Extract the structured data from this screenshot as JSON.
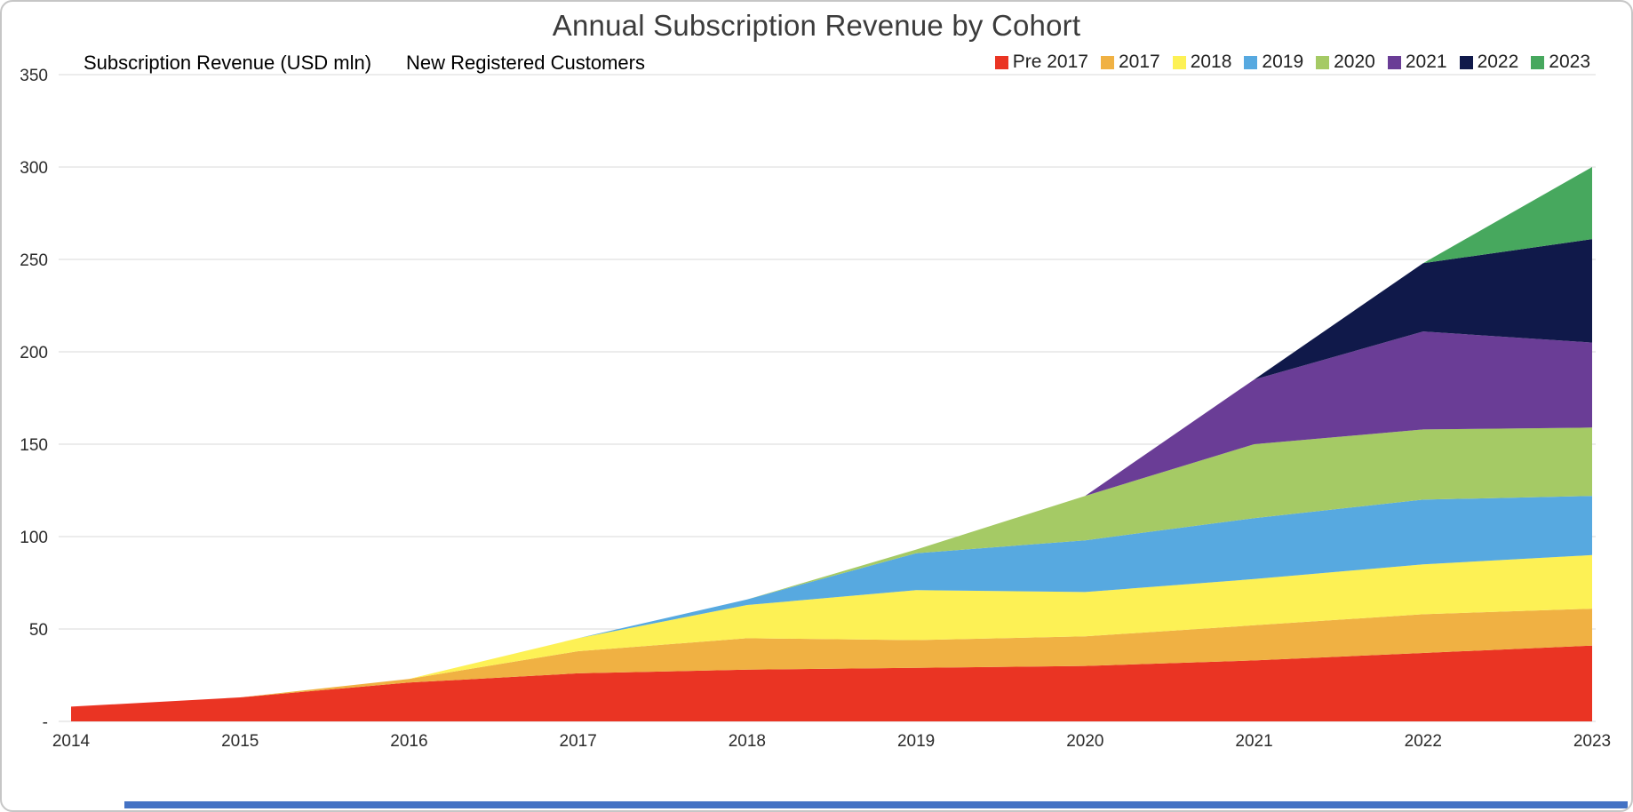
{
  "title": "Annual Subscription Revenue by Cohort",
  "labels": {
    "left_axis_title": "Subscription Revenue (USD mln)",
    "secondary_label": "New Registered Customers"
  },
  "chart_data": {
    "type": "area",
    "stacked": true,
    "title": "Annual Subscription Revenue by Cohort",
    "ylabel": "Subscription Revenue (USD mln)",
    "x": [
      2014,
      2015,
      2016,
      2017,
      2018,
      2019,
      2020,
      2021,
      2022,
      2023
    ],
    "ylim": [
      0,
      350
    ],
    "ytick_step": 50,
    "zero_tick_label": "-",
    "grid": true,
    "legend_position": "top-right",
    "series": [
      {
        "name": "Pre 2017",
        "color": "#ea3423",
        "values": [
          8,
          13,
          21,
          26,
          28,
          29,
          30,
          33,
          37,
          41
        ]
      },
      {
        "name": "2017",
        "color": "#f0b143",
        "values": [
          0,
          0,
          2,
          12,
          17,
          15,
          16,
          19,
          21,
          20
        ]
      },
      {
        "name": "2018",
        "color": "#fdf155",
        "values": [
          0,
          0,
          0,
          7,
          18,
          27,
          24,
          25,
          27,
          29
        ]
      },
      {
        "name": "2019",
        "color": "#57a9e0",
        "values": [
          0,
          0,
          0,
          0,
          3,
          20,
          28,
          33,
          35,
          32
        ]
      },
      {
        "name": "2020",
        "color": "#a5ca65",
        "values": [
          0,
          0,
          0,
          0,
          0,
          2,
          24,
          40,
          38,
          37
        ]
      },
      {
        "name": "2021",
        "color": "#6a3d96",
        "values": [
          0,
          0,
          0,
          0,
          0,
          0,
          0,
          35,
          53,
          46
        ]
      },
      {
        "name": "2022",
        "color": "#10194a",
        "values": [
          0,
          0,
          0,
          0,
          0,
          0,
          0,
          0,
          37,
          56
        ]
      },
      {
        "name": "2023",
        "color": "#47a85e",
        "values": [
          0,
          0,
          0,
          0,
          0,
          0,
          0,
          0,
          0,
          39
        ]
      }
    ]
  },
  "accent_colors": {
    "bottom_bar": "#4472c4",
    "border": "#c6c6c6",
    "gridline": "#d9d9d9"
  }
}
